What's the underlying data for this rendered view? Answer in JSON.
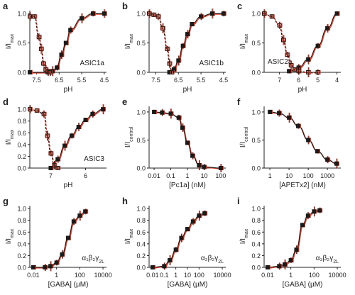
{
  "figure": {
    "panels": [
      {
        "letter": "a",
        "ylab_main": "I/I",
        "ylab_sub": "max",
        "xlabel": "pH",
        "ann": "ASIC1a",
        "ann_sub": "",
        "xticks": [
          "7.5",
          "6.5",
          "5.5",
          "4.5"
        ],
        "yticks": [
          "0.0",
          "0.5",
          "1.0"
        ]
      },
      {
        "letter": "b",
        "ylab_main": "I/I",
        "ylab_sub": "max",
        "xlabel": "pH",
        "ann": "ASIC1b",
        "ann_sub": "",
        "xticks": [
          "7.5",
          "6.5",
          "5.5",
          "4.5"
        ],
        "yticks": [
          "0.0",
          "0.5",
          "1.0"
        ]
      },
      {
        "letter": "c",
        "ylab_main": "I/I",
        "ylab_sub": "max",
        "xlabel": "pH",
        "ann": "ASIC2a",
        "ann_sub": "",
        "xticks": [
          "7",
          "6",
          "5",
          "4"
        ],
        "yticks": [
          "0.0",
          "0.5",
          "1.0"
        ]
      },
      {
        "letter": "d",
        "ylab_main": "I/I",
        "ylab_sub": "max",
        "xlabel": "pH",
        "ann": "ASIC3",
        "ann_sub": "",
        "xticks": [
          "7",
          "6"
        ],
        "yticks": [
          "0.0",
          "0.2",
          "0.4",
          "0.6",
          "0.8",
          "1.0"
        ]
      },
      {
        "letter": "e",
        "ylab_main": "I/I",
        "ylab_sub": "control",
        "xlabel": "[Pc1a] (nM)",
        "ann": "",
        "ann_sub": "",
        "xticks": [
          "0.01",
          "0.1",
          "1",
          "10",
          "100"
        ],
        "yticks": [
          "0.0",
          "0.5",
          "1.0"
        ]
      },
      {
        "letter": "f",
        "ylab_main": "I/I",
        "ylab_sub": "control",
        "xlabel": "[APETx2] (nM)",
        "ann": "",
        "ann_sub": "",
        "xticks": [
          "1",
          "10",
          "100",
          "1000"
        ],
        "yticks": [
          "0.0",
          "0.5",
          "1.0"
        ]
      },
      {
        "letter": "g",
        "ylab_main": "I/I",
        "ylab_sub": "max",
        "xlabel": "[GABA] (µM)",
        "ann": "α₁β₂γ",
        "ann_sub": "2L",
        "xticks": [
          "0.01",
          "1",
          "100",
          "10000"
        ],
        "yticks": [
          "0.0",
          "0.2",
          "0.4",
          "0.6",
          "0.8",
          "1.0"
        ]
      },
      {
        "letter": "h",
        "ylab_main": "I/I",
        "ylab_sub": "max",
        "xlabel": "[GABA] (µM)",
        "ann": "α₂β₂γ",
        "ann_sub": "2L",
        "xticks": [
          "0.01",
          "0.1",
          "1",
          "10",
          "100",
          "10000"
        ],
        "yticks": [
          "0.0",
          "0.2",
          "0.4",
          "0.6",
          "0.8",
          "1.0"
        ]
      },
      {
        "letter": "i",
        "ylab_main": "I/I",
        "ylab_sub": "max",
        "xlabel": "[GABA] (µM)",
        "ann": "α₃β₂γ",
        "ann_sub": "2L",
        "xticks": [
          "0.01",
          "1",
          "100",
          "10000"
        ],
        "yticks": [
          "0.0",
          "0.2",
          "0.4",
          "0.6",
          "0.8",
          "1.0"
        ]
      }
    ]
  },
  "colors": {
    "black": "#1a1a1a",
    "red": "#e2412b",
    "axis": "#222222",
    "grey": "#555555"
  },
  "chart_data": [
    {
      "panel": "a",
      "type": "scatter",
      "xlabel": "pH",
      "ylabel": "I/Imax",
      "xlim": [
        7.8,
        4.4
      ],
      "ylim": [
        0,
        1.05
      ],
      "xscale": "reversed",
      "series": [
        {
          "marker": "filled-square",
          "style": "solid",
          "x": [
            7.8,
            7.0,
            6.8,
            6.6,
            6.4,
            6.2,
            6.0,
            5.5,
            5.0,
            4.5
          ],
          "y": [
            0.0,
            0.0,
            0.02,
            0.08,
            0.3,
            0.5,
            0.72,
            0.92,
            1.0,
            1.0
          ]
        },
        {
          "marker": "open-square",
          "style": "dashed",
          "x": [
            7.8,
            7.6,
            7.4,
            7.3,
            7.2,
            7.1,
            7.0,
            6.9
          ],
          "y": [
            0.95,
            0.95,
            0.6,
            0.4,
            0.15,
            0.05,
            0.02,
            0.0
          ]
        }
      ]
    },
    {
      "panel": "b",
      "type": "scatter",
      "xlabel": "pH",
      "ylabel": "I/Imax",
      "xlim": [
        7.8,
        4.4
      ],
      "ylim": [
        0,
        1.05
      ],
      "xscale": "reversed",
      "series": [
        {
          "marker": "filled-square",
          "style": "solid",
          "x": [
            6.9,
            6.7,
            6.5,
            6.3,
            6.1,
            5.9,
            5.5,
            5.0,
            4.5
          ],
          "y": [
            0.0,
            0.05,
            0.2,
            0.45,
            0.65,
            0.82,
            0.95,
            1.0,
            1.0
          ]
        },
        {
          "marker": "open-square",
          "style": "dashed",
          "x": [
            7.8,
            7.6,
            7.4,
            7.2,
            7.0,
            6.9,
            6.8
          ],
          "y": [
            1.0,
            0.98,
            0.95,
            0.75,
            0.4,
            0.15,
            0.0
          ]
        }
      ]
    },
    {
      "panel": "c",
      "type": "scatter",
      "xlabel": "pH",
      "ylabel": "I/Imax",
      "xlim": [
        7.8,
        3.8
      ],
      "ylim": [
        0,
        1.05
      ],
      "xscale": "reversed",
      "series": [
        {
          "marker": "filled-square",
          "style": "solid",
          "x": [
            6.5,
            6.0,
            5.5,
            5.0,
            4.5,
            4.0
          ],
          "y": [
            0.02,
            0.08,
            0.22,
            0.45,
            0.75,
            1.0
          ]
        },
        {
          "marker": "open-square",
          "style": "dashed",
          "x": [
            7.8,
            7.4,
            7.0,
            6.8,
            6.6,
            6.4,
            6.2,
            6.0,
            5.5,
            5.0
          ],
          "y": [
            1.0,
            0.95,
            0.8,
            0.55,
            0.3,
            0.12,
            0.05,
            0.02,
            0.0,
            0.0
          ]
        }
      ]
    },
    {
      "panel": "d",
      "type": "scatter",
      "xlabel": "pH",
      "ylabel": "I/Imax",
      "xlim": [
        7.6,
        5.4
      ],
      "ylim": [
        0,
        1.05
      ],
      "xscale": "reversed",
      "series": [
        {
          "marker": "filled-square",
          "style": "solid",
          "x": [
            7.0,
            6.8,
            6.6,
            6.4,
            6.2,
            6.0,
            5.8,
            5.5
          ],
          "y": [
            0.0,
            0.15,
            0.38,
            0.55,
            0.7,
            0.82,
            0.92,
            1.0
          ]
        },
        {
          "marker": "open-square",
          "style": "dashed",
          "x": [
            7.6,
            7.4,
            7.2,
            7.1,
            7.0,
            6.9,
            6.8
          ],
          "y": [
            1.0,
            0.98,
            0.92,
            0.55,
            0.25,
            0.05,
            0.0
          ]
        }
      ]
    },
    {
      "panel": "e",
      "type": "scatter",
      "xlabel": "[Pc1a] (nM)",
      "ylabel": "I/Icontrol",
      "xlim": [
        0.005,
        200
      ],
      "ylim": [
        0,
        1.1
      ],
      "xscale": "log",
      "series": [
        {
          "marker": "filled-square",
          "style": "solid",
          "x": [
            0.01,
            0.03,
            0.1,
            0.3,
            0.5,
            1,
            2,
            5,
            10,
            100
          ],
          "y": [
            1.0,
            0.99,
            0.97,
            0.9,
            0.72,
            0.45,
            0.22,
            0.05,
            0.02,
            0.0
          ]
        }
      ]
    },
    {
      "panel": "f",
      "type": "scatter",
      "xlabel": "[APETx2] (nM)",
      "ylabel": "I/Icontrol",
      "xlim": [
        0.5,
        5000
      ],
      "ylim": [
        0,
        1.1
      ],
      "xscale": "log",
      "series": [
        {
          "marker": "filled-square",
          "style": "solid",
          "x": [
            1,
            3,
            10,
            30,
            100,
            300,
            1000,
            3000
          ],
          "y": [
            1.0,
            0.98,
            0.9,
            0.75,
            0.5,
            0.3,
            0.15,
            0.08
          ]
        }
      ]
    },
    {
      "panel": "g",
      "type": "scatter",
      "xlabel": "[GABA] (µM)",
      "ylabel": "I/Imax",
      "xlim": [
        0.005,
        20000
      ],
      "ylim": [
        0,
        1.05
      ],
      "xscale": "log",
      "series": [
        {
          "marker": "filled-square",
          "style": "solid",
          "x": [
            0.01,
            0.1,
            0.3,
            1,
            3,
            10,
            30,
            100,
            300
          ],
          "y": [
            0.0,
            0.0,
            0.02,
            0.08,
            0.22,
            0.5,
            0.78,
            0.88,
            0.95
          ]
        }
      ]
    },
    {
      "panel": "h",
      "type": "scatter",
      "xlabel": "[GABA] (µM)",
      "ylabel": "I/Imax",
      "xlim": [
        0.005,
        20000
      ],
      "ylim": [
        0,
        1.05
      ],
      "xscale": "log",
      "series": [
        {
          "marker": "filled-square",
          "style": "solid",
          "x": [
            0.01,
            0.1,
            0.3,
            1,
            3,
            10,
            30,
            100,
            300
          ],
          "y": [
            0.0,
            0.02,
            0.12,
            0.3,
            0.5,
            0.65,
            0.78,
            0.88,
            0.92
          ]
        }
      ]
    },
    {
      "panel": "i",
      "type": "scatter",
      "xlabel": "[GABA] (µM)",
      "ylabel": "I/Imax",
      "xlim": [
        0.005,
        20000
      ],
      "ylim": [
        0,
        1.05
      ],
      "xscale": "log",
      "series": [
        {
          "marker": "filled-square",
          "style": "solid",
          "x": [
            0.01,
            0.1,
            0.3,
            1,
            3,
            10,
            30,
            100,
            300
          ],
          "y": [
            0.0,
            0.02,
            0.05,
            0.12,
            0.3,
            0.72,
            0.88,
            0.95,
            0.97
          ]
        }
      ]
    }
  ]
}
